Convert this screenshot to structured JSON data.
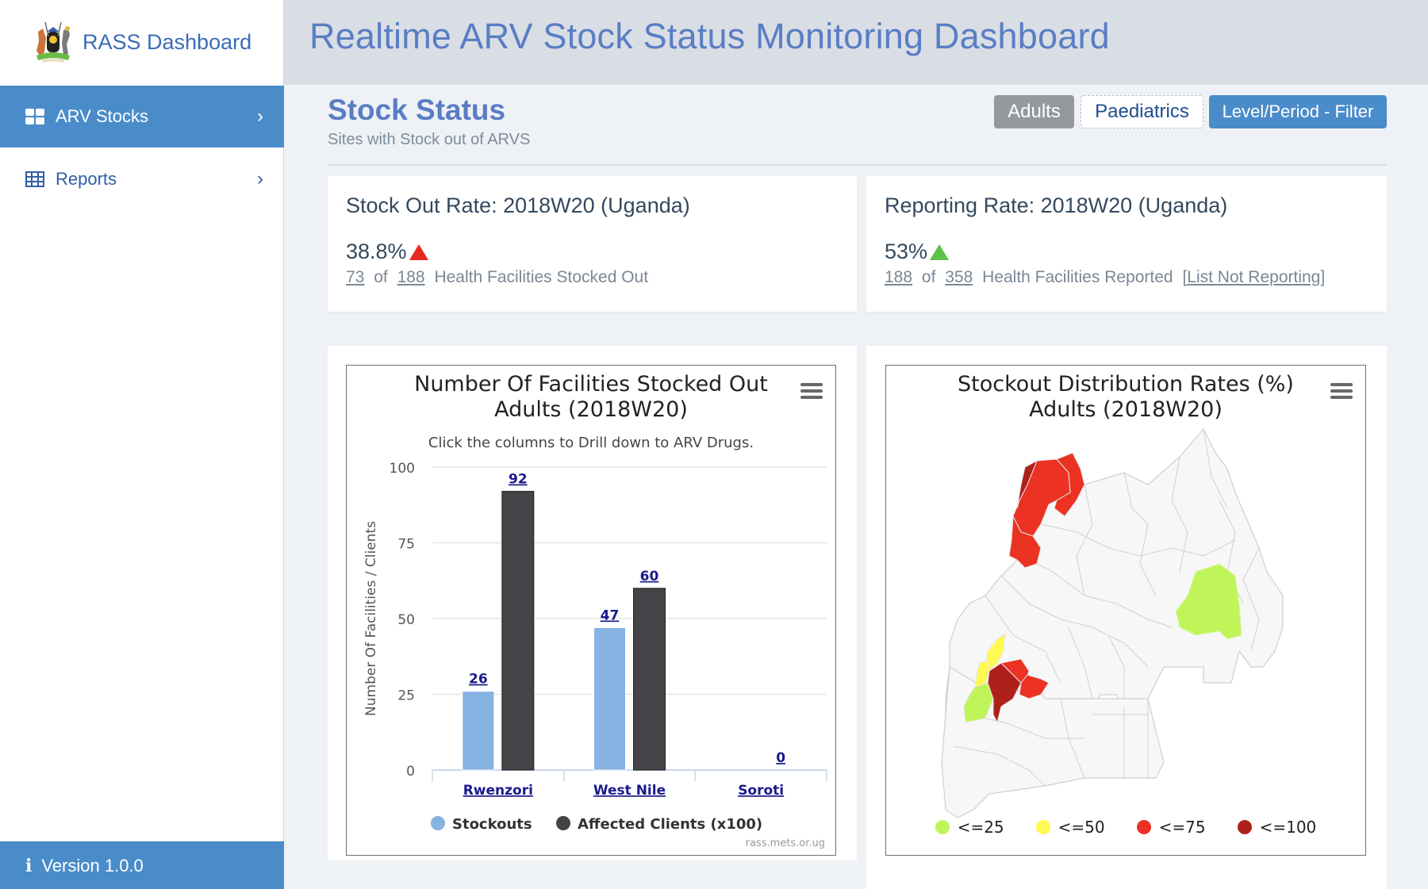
{
  "sidebar": {
    "brand": "RASS Dashboard",
    "items": [
      {
        "label": "ARV Stocks",
        "icon": "grid-icon",
        "active": true
      },
      {
        "label": "Reports",
        "icon": "table-icon",
        "active": false
      }
    ],
    "version": "Version 1.0.0"
  },
  "header": {
    "title": "Realtime ARV Stock Status Monitoring Dashboard"
  },
  "page": {
    "title": "Stock Status",
    "subtitle": "Sites with Stock out of ARVS",
    "buttons": {
      "adults": "Adults",
      "paediatrics": "Paediatrics",
      "filter": "Level/Period - Filter"
    }
  },
  "stockout_card": {
    "title": "Stock Out Rate: 2018W20 (Uganda)",
    "rate": "38.8%",
    "trend": "up",
    "trend_color": "#e8281f",
    "count": "73",
    "of": "of",
    "total": "188",
    "suffix": "Health Facilities Stocked Out"
  },
  "reporting_card": {
    "title": "Reporting Rate: 2018W20 (Uganda)",
    "rate": "53%",
    "trend": "up",
    "trend_color": "#5bc34a",
    "count": "188",
    "of": "of",
    "total": "358",
    "suffix": "Health Facilities Reported",
    "link": "List Not Reporting"
  },
  "chart_data": [
    {
      "type": "bar",
      "title": "Number Of Facilities Stocked Out",
      "title2": "Adults (2018W20)",
      "subtitle": "Click the columns to Drill down to ARV Drugs.",
      "ylabel": "Number Of Facilities / Clients",
      "xlabel": "",
      "ylim": [
        0,
        100
      ],
      "yticks": [
        0,
        25,
        50,
        75,
        100
      ],
      "categories": [
        "Rwenzori",
        "West Nile",
        "Soroti"
      ],
      "series": [
        {
          "name": "Stockouts",
          "color": "#87b3e3",
          "values": [
            26,
            47,
            0
          ]
        },
        {
          "name": "Affected Clients (x100)",
          "color": "#434348",
          "values": [
            92,
            60,
            0
          ]
        }
      ],
      "data_labels": [
        [
          "26",
          "47",
          ""
        ],
        [
          "92",
          "60",
          "0"
        ]
      ],
      "legend": "bottom",
      "grid": true,
      "credits": "rass.mets.or.ug"
    },
    {
      "type": "map",
      "title": "Stockout Distribution Rates (%)",
      "title2": "Adults (2018W20)",
      "legend": "bottom",
      "legend_items": [
        {
          "label": "<=25",
          "color": "#c0f55a"
        },
        {
          "label": "<=50",
          "color": "#fff952"
        },
        {
          "label": "<=75",
          "color": "#eb3223"
        },
        {
          "label": "<=100",
          "color": "#b0201a"
        }
      ],
      "base_color": "#f7f7f7"
    }
  ]
}
